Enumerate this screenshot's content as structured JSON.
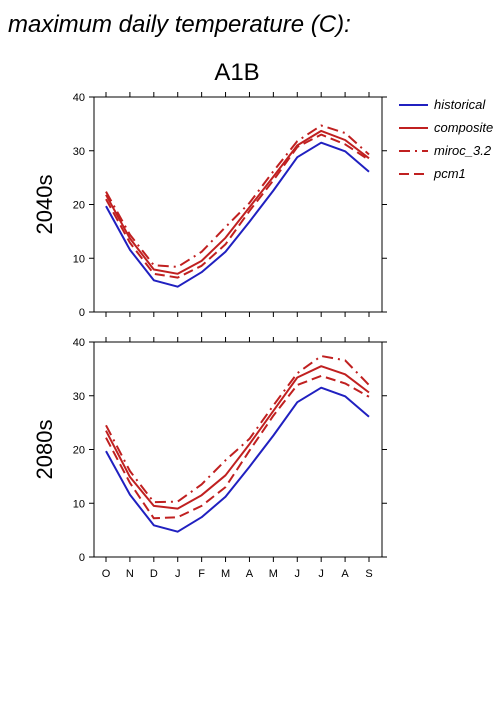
{
  "title": "maximum daily temperature (C):",
  "scenario": "A1B",
  "colors": {
    "historical": "#2020c0",
    "future": "#c02020",
    "axis": "#000000"
  },
  "legend": {
    "placement": "right",
    "entries": [
      {
        "label": "historical",
        "color": "#2020c0",
        "style": "solid"
      },
      {
        "label": "composite",
        "color": "#c02020",
        "style": "solid"
      },
      {
        "label": "miroc_3.2",
        "color": "#c02020",
        "style": "dashdot"
      },
      {
        "label": "pcm1",
        "color": "#c02020",
        "style": "dashed"
      }
    ]
  },
  "chart_data": [
    {
      "type": "line",
      "ylabel": "2040s",
      "categories": [
        "O",
        "N",
        "D",
        "J",
        "F",
        "M",
        "A",
        "M",
        "J",
        "J",
        "A",
        "S"
      ],
      "ylim": [
        0,
        40
      ],
      "yticks": [
        0,
        10,
        20,
        30,
        40
      ],
      "grid": false,
      "series": [
        {
          "name": "historical",
          "style": "solid",
          "color": "#2020c0",
          "values": [
            19.7,
            11.6,
            5.9,
            4.7,
            7.4,
            11.2,
            16.8,
            22.6,
            28.8,
            31.5,
            29.9,
            26.1
          ]
        },
        {
          "name": "composite",
          "style": "solid",
          "color": "#c02020",
          "values": [
            21.8,
            13.7,
            7.9,
            7.1,
            9.5,
            13.8,
            19.5,
            25.2,
            31.0,
            33.7,
            32.0,
            28.6
          ]
        },
        {
          "name": "miroc_3.2",
          "style": "dashdot",
          "color": "#c02020",
          "values": [
            22.4,
            14.4,
            8.7,
            8.4,
            11.2,
            15.8,
            20.3,
            26.2,
            31.8,
            34.7,
            33.3,
            29.3
          ]
        },
        {
          "name": "pcm1",
          "style": "dashed",
          "color": "#c02020",
          "values": [
            21.0,
            12.9,
            7.1,
            6.4,
            8.6,
            12.6,
            18.8,
            24.5,
            30.7,
            33.0,
            31.2,
            28.3
          ]
        }
      ]
    },
    {
      "type": "line",
      "ylabel": "2080s",
      "categories": [
        "O",
        "N",
        "D",
        "J",
        "F",
        "M",
        "A",
        "M",
        "J",
        "J",
        "A",
        "S"
      ],
      "ylim": [
        0,
        40
      ],
      "yticks": [
        0,
        10,
        20,
        30,
        40
      ],
      "grid": false,
      "series": [
        {
          "name": "historical",
          "style": "solid",
          "color": "#2020c0",
          "values": [
            19.7,
            11.6,
            5.9,
            4.7,
            7.4,
            11.2,
            16.8,
            22.6,
            28.8,
            31.5,
            29.9,
            26.1
          ]
        },
        {
          "name": "composite",
          "style": "solid",
          "color": "#c02020",
          "values": [
            23.5,
            14.9,
            9.5,
            9.0,
            11.5,
            15.2,
            21.0,
            27.2,
            33.4,
            35.5,
            34.0,
            30.6
          ]
        },
        {
          "name": "miroc_3.2",
          "style": "dashdot",
          "color": "#c02020",
          "values": [
            24.5,
            16.0,
            10.2,
            10.3,
            13.5,
            18.0,
            22.0,
            28.2,
            34.2,
            37.4,
            36.6,
            32.0
          ]
        },
        {
          "name": "pcm1",
          "style": "dashed",
          "color": "#c02020",
          "values": [
            22.2,
            13.8,
            7.2,
            7.4,
            9.5,
            13.0,
            19.8,
            26.3,
            32.0,
            33.7,
            32.3,
            29.8
          ]
        }
      ]
    }
  ]
}
